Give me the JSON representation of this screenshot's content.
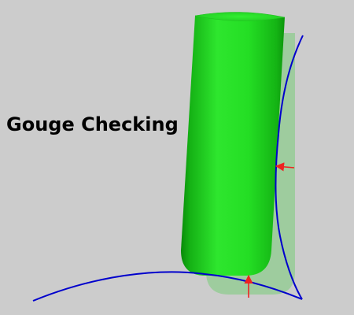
{
  "title": "Gouge Checking",
  "colors": {
    "background": "#cccccc",
    "cutter": "#22dd22",
    "cutter_ghost": "#7fd47f",
    "curve": "#0000cc",
    "arrow": "#ee2222"
  }
}
